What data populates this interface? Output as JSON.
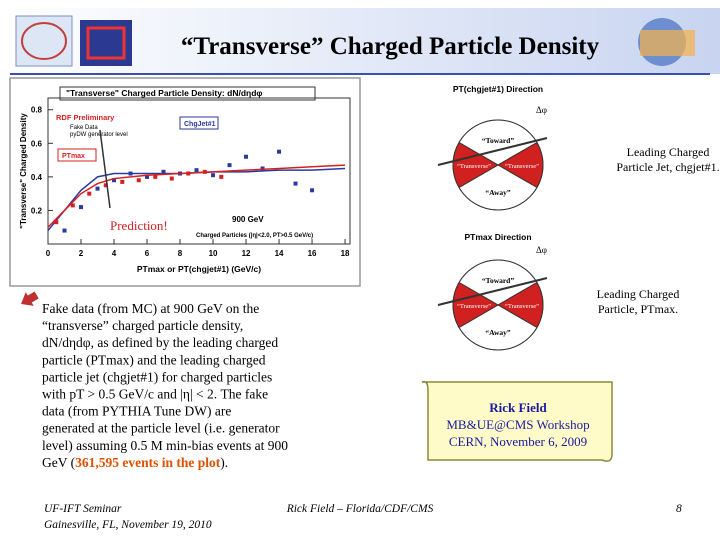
{
  "header": {
    "title": "“Transverse” Charged Particle Density"
  },
  "chart": {
    "title": "\"Transverse\" Charged Particle Density: dN/dηdφ",
    "preliminary": "RDF Preliminary",
    "legend_points": "Fake Data",
    "legend_curves": "pyDW generator level",
    "energy": "900 GeV",
    "cuts": "Charged Particles (|η|<2.0, PT>0.5 GeV/c)",
    "annotation": "Prediction!",
    "x_label": "PTmax or PT(chgjet#1) (GeV/c)",
    "y_label": "\"Transverse\" Charged Density",
    "xlim": [
      0,
      18.3
    ],
    "ylim": [
      0,
      0.87
    ],
    "xticks": [
      0,
      2,
      4,
      6,
      8,
      10,
      12,
      14,
      16,
      18
    ],
    "yticks": [
      0.2,
      0.4,
      0.6,
      0.8
    ],
    "series": [
      {
        "name": "ChgJet#1",
        "color": "#2a3a9e",
        "data_x": [
          1,
          2,
          3,
          4,
          5,
          6,
          7,
          8,
          9,
          10,
          11,
          12,
          13,
          14,
          15,
          16
        ],
        "data_values": [
          0.08,
          0.22,
          0.33,
          0.38,
          0.42,
          0.4,
          0.43,
          0.42,
          0.44,
          0.41,
          0.47,
          0.52,
          0.45,
          0.55,
          0.36,
          0.32
        ],
        "curve_x": [
          0,
          1,
          2,
          3,
          4,
          6,
          8,
          10,
          12,
          14,
          16,
          18
        ],
        "curve_values": [
          0.08,
          0.2,
          0.32,
          0.4,
          0.42,
          0.42,
          0.42,
          0.43,
          0.43,
          0.44,
          0.44,
          0.45
        ]
      },
      {
        "name": "PTmax",
        "color": "#d42020",
        "data_x": [
          0.5,
          1.5,
          2.5,
          3.5,
          4.5,
          5.5,
          6.5,
          7.5,
          8.5,
          9.5,
          10.5
        ],
        "data_values": [
          0.13,
          0.23,
          0.3,
          0.35,
          0.37,
          0.38,
          0.4,
          0.39,
          0.42,
          0.43,
          0.4
        ],
        "curve_x": [
          0,
          1,
          2,
          3,
          4,
          6,
          8,
          10,
          12,
          14,
          16,
          18
        ],
        "curve_values": [
          0.1,
          0.2,
          0.3,
          0.36,
          0.39,
          0.41,
          0.42,
          0.43,
          0.44,
          0.45,
          0.46,
          0.47
        ]
      }
    ]
  },
  "diagrams": [
    {
      "title": "PT(chgjet#1) Direction",
      "delta": "Δφ",
      "toward": "“Toward”",
      "transverse_left": "“Transverse”",
      "transverse_right": "“Transverse”",
      "away": "“Away”",
      "note": [
        "Leading Charged",
        "Particle Jet, chgjet#1."
      ]
    },
    {
      "title": "PTmax Direction",
      "delta": "Δφ",
      "toward": "“Toward”",
      "transverse_left": "“Transverse”",
      "transverse_right": "“Transverse”",
      "away": "“Away”",
      "note": [
        "Leading Charged",
        "Particle, PTmax."
      ]
    }
  ],
  "bullet": {
    "lines": [
      "Fake data (from MC) at 900 GeV on the",
      "“transverse” charged particle density,",
      "dN/dηdφ, as defined by the leading charged",
      "particle (PTmax) and the leading charged",
      "particle jet (chgjet#1) for charged particles",
      "with pT > 0.5 GeV/c and |η| < 2.  The fake",
      "data (from PYTHIA Tune DW) are",
      "generated at the particle level (i.e. generator",
      "level) assuming 0.5 M min-bias events at 900"
    ],
    "last_start": "GeV (",
    "last_highlight": "361,595 events in the plot",
    "last_end": ")."
  },
  "scroll": [
    "Rick Field",
    "MB&UE@CMS Workshop",
    "CERN, November 6, 2009"
  ],
  "footer": {
    "left": [
      "UF-IFT Seminar",
      "Gainesville, FL,  November 19, 2010"
    ],
    "center": "Rick Field – Florida/CDF/CMS",
    "page": "8"
  }
}
